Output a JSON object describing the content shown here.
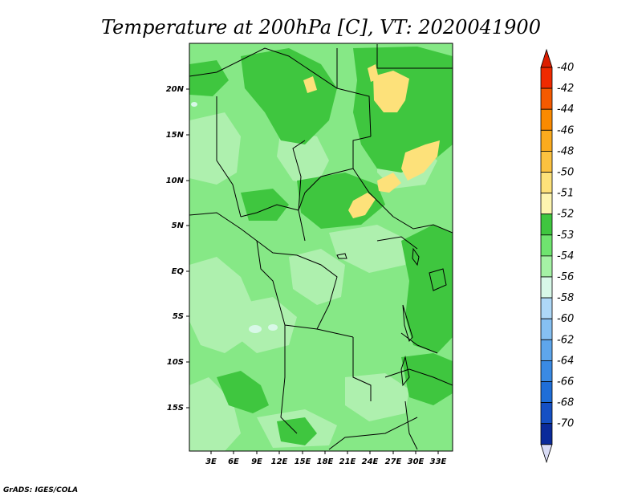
{
  "title": "Temperature at 200hPa [C], VT: 2020041900",
  "credit": "GrADS: IGES/COLA",
  "lat_ticks": [
    "20N",
    "15N",
    "10N",
    "5N",
    "EQ",
    "5S",
    "10S",
    "15S"
  ],
  "lon_ticks": [
    "3E",
    "6E",
    "9E",
    "12E",
    "15E",
    "18E",
    "21E",
    "24E",
    "27E",
    "30E",
    "33E"
  ],
  "legend": [
    {
      "label": "-40",
      "color": "#f02a00"
    },
    {
      "label": "-42",
      "color": "#f55a00"
    },
    {
      "label": "-44",
      "color": "#fa8a00"
    },
    {
      "label": "-46",
      "color": "#fbab1e"
    },
    {
      "label": "-48",
      "color": "#fcc240"
    },
    {
      "label": "-50",
      "color": "#fde17a"
    },
    {
      "label": "-51",
      "color": "#fdf5b0"
    },
    {
      "label": "-52",
      "color": "#3fc63f"
    },
    {
      "label": "-53",
      "color": "#6fe46f"
    },
    {
      "label": "-54",
      "color": "#a5f2a5"
    },
    {
      "label": "-56",
      "color": "#d8f8e8"
    },
    {
      "label": "-58",
      "color": "#aed8f7"
    },
    {
      "label": "-60",
      "color": "#86c0f2"
    },
    {
      "label": "-62",
      "color": "#5ea6ec"
    },
    {
      "label": "-64",
      "color": "#3a8ae4"
    },
    {
      "label": "-66",
      "color": "#1f6ed8"
    },
    {
      "label": "-68",
      "color": "#1550c4"
    },
    {
      "label": "-70",
      "color": "#0a2a9a"
    }
  ],
  "legend_tip_colors": {
    "top": "#dc1e00",
    "bottom": "#d9dcf6"
  },
  "map_colors": {
    "background": "#86e886",
    "dark_band": "#3fc63f",
    "light_patch": "#aef0ae",
    "warm_patch": "#fde17a",
    "cool_spot": "#d8f8e8"
  }
}
